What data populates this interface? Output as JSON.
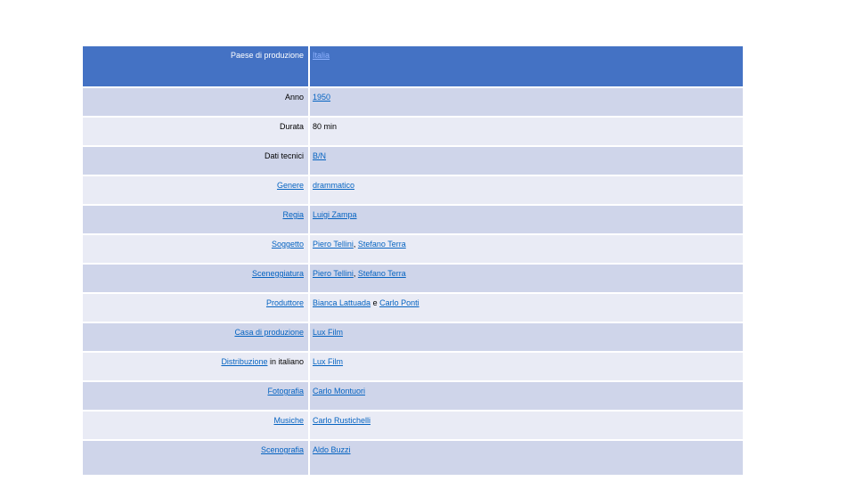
{
  "table": {
    "rows": [
      {
        "label": "Paese di produzione",
        "value": "Italia"
      },
      {
        "label": "Anno",
        "value": "1950"
      },
      {
        "label": "Durata",
        "value": "80 min"
      },
      {
        "label": "Dati tecnici",
        "value": "B/N"
      },
      {
        "label": "Genere",
        "value": "drammatico"
      },
      {
        "label": "Regia",
        "value": "Luigi Zampa"
      },
      {
        "label": "Soggetto",
        "value_a": "Piero Tellini",
        "sep": ", ",
        "value_b": "Stefano Terra"
      },
      {
        "label": "Sceneggiatura",
        "value_a": "Piero Tellini",
        "sep": ", ",
        "value_b": "Stefano Terra"
      },
      {
        "label": "Produttore",
        "value_a": "Bianca Lattuada",
        "sep": " e ",
        "value_b": "Carlo Ponti"
      },
      {
        "label": "Casa di produzione",
        "value": "Lux Film"
      },
      {
        "label_a": "Distribuzione",
        "label_b": " in italiano",
        "value": "Lux Film"
      },
      {
        "label": "Fotografia",
        "value": "Carlo Montuori"
      },
      {
        "label": "Musiche",
        "value": "Carlo Rustichelli"
      },
      {
        "label": "Scenografia",
        "value": "Aldo Buzzi"
      }
    ]
  },
  "colors": {
    "header_bg": "#4472c4",
    "row_dark": "#cfd5ea",
    "row_light": "#e9ebf5",
    "link": "#0563c1"
  }
}
